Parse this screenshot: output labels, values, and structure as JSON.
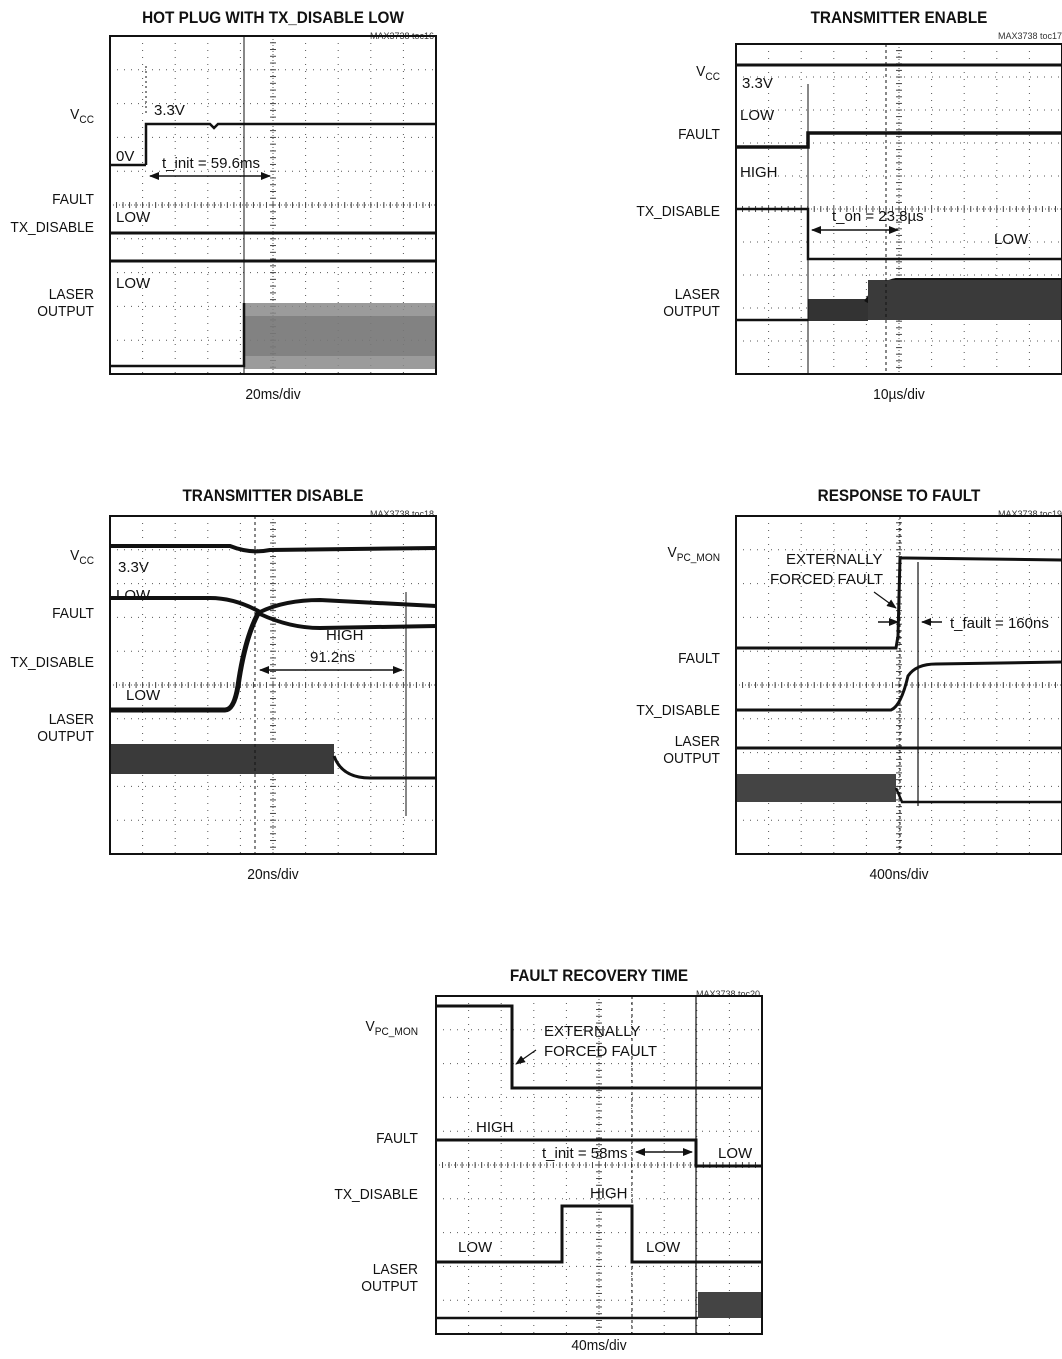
{
  "panels": [
    {
      "id": "toc16",
      "title": "HOT PLUG WITH TX_DISABLE LOW",
      "figure_id": "MAX3738 toc16",
      "timebase": "20ms/div",
      "channels": [
        {
          "name": "VCC",
          "main": "V",
          "sub": "CC"
        },
        {
          "name": "FAULT",
          "main": "FAULT",
          "sub": ""
        },
        {
          "name": "TX_DISABLE",
          "main": "TX_DISABLE",
          "sub": ""
        },
        {
          "name": "LASER OUTPUT",
          "main": "LASER",
          "line2": "OUTPUT",
          "sub": ""
        }
      ],
      "annotations": [
        "3.3V",
        "0V",
        "t_init = 59.6ms",
        "LOW",
        "LOW"
      ]
    },
    {
      "id": "toc17",
      "title": "TRANSMITTER ENABLE",
      "figure_id": "MAX3738 toc17",
      "timebase": "10µs/div",
      "channels": [
        {
          "name": "VCC",
          "main": "V",
          "sub": "CC"
        },
        {
          "name": "FAULT",
          "main": "FAULT",
          "sub": ""
        },
        {
          "name": "TX_DISABLE",
          "main": "TX_DISABLE",
          "sub": ""
        },
        {
          "name": "LASER OUTPUT",
          "main": "LASER",
          "line2": "OUTPUT",
          "sub": ""
        }
      ],
      "annotations": [
        "3.3V",
        "LOW",
        "HIGH",
        "t_on = 23.8µs",
        "LOW"
      ]
    },
    {
      "id": "toc18",
      "title": "TRANSMITTER DISABLE",
      "figure_id": "MAX3738 toc18",
      "timebase": "20ns/div",
      "channels": [
        {
          "name": "VCC",
          "main": "V",
          "sub": "CC"
        },
        {
          "name": "FAULT",
          "main": "FAULT",
          "sub": ""
        },
        {
          "name": "TX_DISABLE",
          "main": "TX_DISABLE",
          "sub": ""
        },
        {
          "name": "LASER OUTPUT",
          "main": "LASER",
          "line2": "OUTPUT",
          "sub": ""
        }
      ],
      "annotations": [
        "3.3V",
        "LOW",
        "HIGH",
        "91.2ns",
        "LOW"
      ]
    },
    {
      "id": "toc19",
      "title": "RESPONSE TO FAULT",
      "figure_id": "MAX3738 toc19",
      "timebase": "400ns/div",
      "channels": [
        {
          "name": "VPC_MON",
          "main": "V",
          "sub": "PC_MON"
        },
        {
          "name": "FAULT",
          "main": "FAULT",
          "sub": ""
        },
        {
          "name": "TX_DISABLE",
          "main": "TX_DISABLE",
          "sub": ""
        },
        {
          "name": "LASER OUTPUT",
          "main": "LASER",
          "line2": "OUTPUT",
          "sub": ""
        }
      ],
      "annotations": [
        "EXTERNALLY",
        "FORCED FAULT",
        "t_fault = 160ns"
      ]
    },
    {
      "id": "toc20",
      "title": "FAULT RECOVERY TIME",
      "figure_id": "MAX3738 toc20",
      "timebase": "40ms/div",
      "channels": [
        {
          "name": "VPC_MON",
          "main": "V",
          "sub": "PC_MON"
        },
        {
          "name": "FAULT",
          "main": "FAULT",
          "sub": ""
        },
        {
          "name": "TX_DISABLE",
          "main": "TX_DISABLE",
          "sub": ""
        },
        {
          "name": "LASER OUTPUT",
          "main": "LASER",
          "line2": "OUTPUT",
          "sub": ""
        }
      ],
      "annotations": [
        "EXTERNALLY",
        "FORCED FAULT",
        "HIGH",
        "t_init = 58ms",
        "LOW",
        "HIGH",
        "LOW",
        "LOW"
      ]
    }
  ],
  "chart_data": [
    {
      "type": "line",
      "title": "HOT PLUG WITH TX_DISABLE LOW",
      "xlabel": "20ms/div",
      "grid": true,
      "x_divisions": 10,
      "y_divisions": 10,
      "measurement": "t_init = 59.6ms",
      "series": [
        {
          "name": "VCC"
        },
        {
          "name": "FAULT"
        },
        {
          "name": "TX_DISABLE"
        },
        {
          "name": "LASER OUTPUT"
        }
      ]
    },
    {
      "type": "line",
      "title": "TRANSMITTER ENABLE",
      "xlabel": "10µs/div",
      "grid": true,
      "x_divisions": 10,
      "y_divisions": 10,
      "measurement": "t_on = 23.8µs",
      "series": [
        {
          "name": "VCC"
        },
        {
          "name": "FAULT"
        },
        {
          "name": "TX_DISABLE"
        },
        {
          "name": "LASER OUTPUT"
        }
      ]
    },
    {
      "type": "line",
      "title": "TRANSMITTER DISABLE",
      "xlabel": "20ns/div",
      "grid": true,
      "x_divisions": 10,
      "y_divisions": 10,
      "measurement": "91.2ns",
      "series": [
        {
          "name": "VCC"
        },
        {
          "name": "FAULT"
        },
        {
          "name": "TX_DISABLE"
        },
        {
          "name": "LASER OUTPUT"
        }
      ]
    },
    {
      "type": "line",
      "title": "RESPONSE TO FAULT",
      "xlabel": "400ns/div",
      "grid": true,
      "x_divisions": 10,
      "y_divisions": 10,
      "measurement": "t_fault = 160ns",
      "series": [
        {
          "name": "VPC_MON"
        },
        {
          "name": "FAULT"
        },
        {
          "name": "TX_DISABLE"
        },
        {
          "name": "LASER OUTPUT"
        }
      ]
    },
    {
      "type": "line",
      "title": "FAULT RECOVERY TIME",
      "xlabel": "40ms/div",
      "grid": true,
      "x_divisions": 10,
      "y_divisions": 10,
      "measurement": "t_init = 58ms",
      "series": [
        {
          "name": "VPC_MON"
        },
        {
          "name": "FAULT"
        },
        {
          "name": "TX_DISABLE"
        },
        {
          "name": "LASER OUTPUT"
        }
      ]
    }
  ]
}
